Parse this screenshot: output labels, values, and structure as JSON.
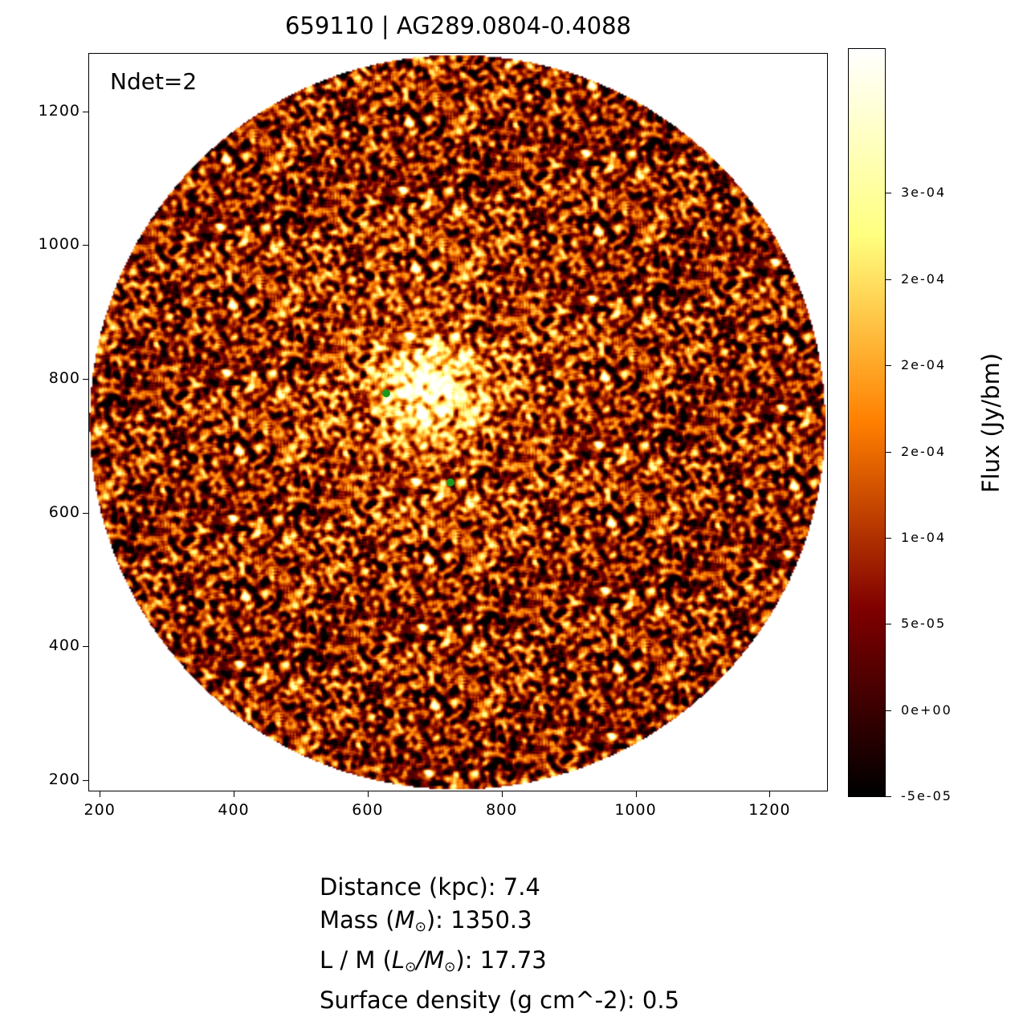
{
  "chart_data": {
    "type": "heatmap",
    "title": "659110 | AG289.0804-0.4088",
    "annotation": "Ndet=2",
    "xlim": [
      183,
      1287
    ],
    "ylim": [
      183,
      1287
    ],
    "xticks": [
      200,
      400,
      600,
      800,
      1000,
      1200
    ],
    "yticks": [
      200,
      400,
      600,
      800,
      1000,
      1200
    ],
    "image": {
      "colormap": "afmhot",
      "shape": "circular field",
      "center": [
        734,
        735
      ],
      "radius": 550,
      "bright_region_center": [
        690,
        780
      ]
    },
    "points": {
      "color": "#1a9a1a",
      "x": [
        627,
        722
      ],
      "y": [
        779,
        646
      ]
    },
    "colorbar": {
      "label": "Flux (Jy/bm)",
      "range": [
        -5e-05,
        0.000384
      ],
      "tick_values": [
        -5e-05,
        0,
        5e-05,
        0.0001,
        0.00015,
        0.0002,
        0.00025,
        0.0003
      ],
      "tick_labels": [
        "-5e-05",
        "0e+00",
        "5e-05",
        "1e-04",
        "2e-04",
        "2e-04",
        "2e-04",
        "3e-04"
      ]
    }
  },
  "info": {
    "distance": {
      "prefix": "Distance (kpc): 7.4"
    },
    "mass": {
      "prefix": "Mass (",
      "sym": "M",
      "sub": "⊙",
      "suffix": "): 1350.3"
    },
    "lm": {
      "prefix": "L / M (",
      "sym1": "L",
      "sub1": "⊙",
      "slash": "/",
      "sym2": "M",
      "sub2": "⊙",
      "suffix": "): 17.73"
    },
    "surface": {
      "prefix": "Surface density (g cm^-2): 0.5"
    }
  }
}
